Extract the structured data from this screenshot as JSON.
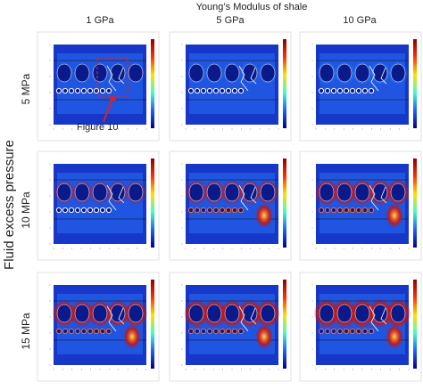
{
  "header": {
    "title": "Young’s Modulus of shale"
  },
  "columns": [
    "1 GPa",
    "5 GPa",
    "10 GPa"
  ],
  "rows": [
    "5 MPa",
    "10 MPa",
    "15 MPa"
  ],
  "side_label": "Fluid excess pressure",
  "annotation": "Figure 10"
}
